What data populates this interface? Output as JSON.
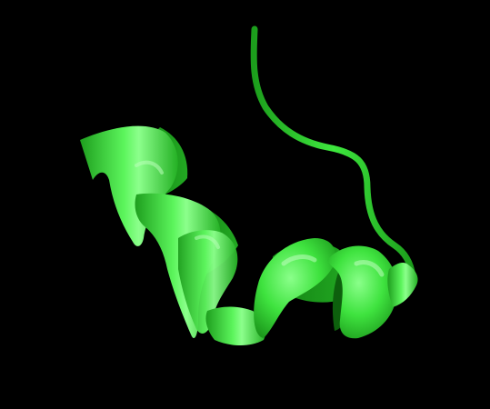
{
  "scene": {
    "subject": "protein-cartoon-alpha-helix",
    "background_color": "#000000",
    "ribbon_color": "#33e033",
    "ribbon_highlight": "#7dff7d",
    "ribbon_shadow": "#178f17"
  }
}
